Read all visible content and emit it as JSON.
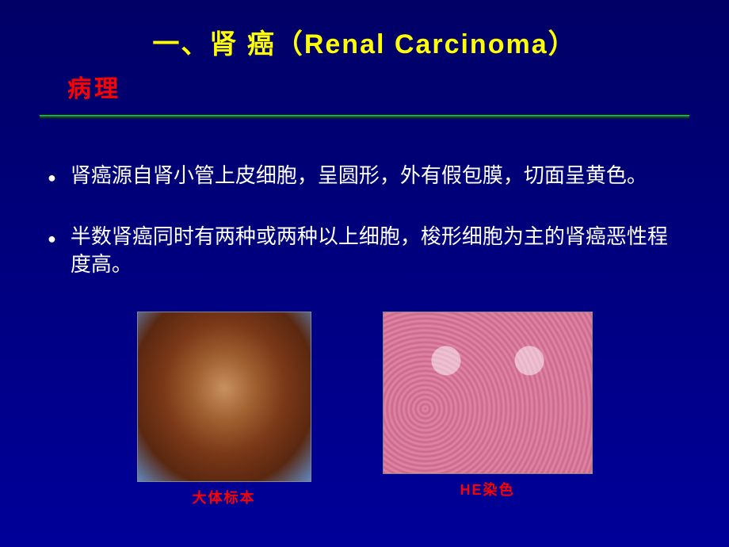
{
  "title": {
    "prefix_cn": "一、肾 癌",
    "paren_open": "（",
    "english": "Renal Carcinoma",
    "paren_close": "）"
  },
  "subtitle": "病理",
  "bullets": [
    "肾癌源自肾小管上皮细胞，呈圆形，外有假包膜，切面呈黄色。",
    "半数肾癌同时有两种或两种以上细胞，梭形细胞为主的肾癌恶性程度高。"
  ],
  "images": {
    "gross": {
      "caption": "大体标本"
    },
    "he": {
      "caption_prefix": "HE",
      "caption_suffix": "染色"
    }
  },
  "colors": {
    "background_top": "#000066",
    "background_bottom": "#000099",
    "title": "#ffff00",
    "subtitle": "#ff0000",
    "divider": "#00cc00",
    "body_text": "#ffffff",
    "caption": "#ff0000"
  },
  "typography": {
    "title_fontsize": 34,
    "subtitle_fontsize": 30,
    "body_fontsize": 26,
    "caption_fontsize": 18
  }
}
